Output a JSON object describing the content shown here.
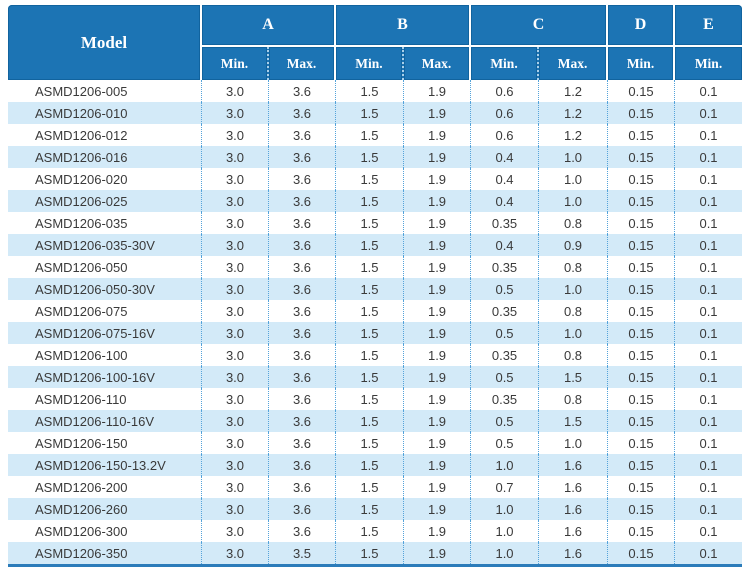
{
  "table": {
    "header": {
      "model_label": "Model",
      "groups": [
        {
          "label": "A",
          "subs": [
            "Min.",
            "Max."
          ]
        },
        {
          "label": "B",
          "subs": [
            "Min.",
            "Max."
          ]
        },
        {
          "label": "C",
          "subs": [
            "Min.",
            "Max."
          ]
        },
        {
          "label": "D",
          "subs": [
            "Min."
          ]
        },
        {
          "label": "E",
          "subs": [
            "Min."
          ]
        }
      ]
    },
    "rows": [
      {
        "model": "ASMD1206-005",
        "values": [
          "3.0",
          "3.6",
          "1.5",
          "1.9",
          "0.6",
          "1.2",
          "0.15",
          "0.1"
        ]
      },
      {
        "model": "ASMD1206-010",
        "values": [
          "3.0",
          "3.6",
          "1.5",
          "1.9",
          "0.6",
          "1.2",
          "0.15",
          "0.1"
        ]
      },
      {
        "model": "ASMD1206-012",
        "values": [
          "3.0",
          "3.6",
          "1.5",
          "1.9",
          "0.6",
          "1.2",
          "0.15",
          "0.1"
        ]
      },
      {
        "model": "ASMD1206-016",
        "values": [
          "3.0",
          "3.6",
          "1.5",
          "1.9",
          "0.4",
          "1.0",
          "0.15",
          "0.1"
        ]
      },
      {
        "model": "ASMD1206-020",
        "values": [
          "3.0",
          "3.6",
          "1.5",
          "1.9",
          "0.4",
          "1.0",
          "0.15",
          "0.1"
        ]
      },
      {
        "model": "ASMD1206-025",
        "values": [
          "3.0",
          "3.6",
          "1.5",
          "1.9",
          "0.4",
          "1.0",
          "0.15",
          "0.1"
        ]
      },
      {
        "model": "ASMD1206-035",
        "values": [
          "3.0",
          "3.6",
          "1.5",
          "1.9",
          "0.35",
          "0.8",
          "0.15",
          "0.1"
        ]
      },
      {
        "model": "ASMD1206-035-30V",
        "values": [
          "3.0",
          "3.6",
          "1.5",
          "1.9",
          "0.4",
          "0.9",
          "0.15",
          "0.1"
        ]
      },
      {
        "model": "ASMD1206-050",
        "values": [
          "3.0",
          "3.6",
          "1.5",
          "1.9",
          "0.35",
          "0.8",
          "0.15",
          "0.1"
        ]
      },
      {
        "model": "ASMD1206-050-30V",
        "values": [
          "3.0",
          "3.6",
          "1.5",
          "1.9",
          "0.5",
          "1.0",
          "0.15",
          "0.1"
        ]
      },
      {
        "model": "ASMD1206-075",
        "values": [
          "3.0",
          "3.6",
          "1.5",
          "1.9",
          "0.35",
          "0.8",
          "0.15",
          "0.1"
        ]
      },
      {
        "model": "ASMD1206-075-16V",
        "values": [
          "3.0",
          "3.6",
          "1.5",
          "1.9",
          "0.5",
          "1.0",
          "0.15",
          "0.1"
        ]
      },
      {
        "model": "ASMD1206-100",
        "values": [
          "3.0",
          "3.6",
          "1.5",
          "1.9",
          "0.35",
          "0.8",
          "0.15",
          "0.1"
        ]
      },
      {
        "model": "ASMD1206-100-16V",
        "values": [
          "3.0",
          "3.6",
          "1.5",
          "1.9",
          "0.5",
          "1.5",
          "0.15",
          "0.1"
        ]
      },
      {
        "model": "ASMD1206-110",
        "values": [
          "3.0",
          "3.6",
          "1.5",
          "1.9",
          "0.35",
          "0.8",
          "0.15",
          "0.1"
        ]
      },
      {
        "model": "ASMD1206-110-16V",
        "values": [
          "3.0",
          "3.6",
          "1.5",
          "1.9",
          "0.5",
          "1.5",
          "0.15",
          "0.1"
        ]
      },
      {
        "model": "ASMD1206-150",
        "values": [
          "3.0",
          "3.6",
          "1.5",
          "1.9",
          "0.5",
          "1.0",
          "0.15",
          "0.1"
        ]
      },
      {
        "model": "ASMD1206-150-13.2V",
        "values": [
          "3.0",
          "3.6",
          "1.5",
          "1.9",
          "1.0",
          "1.6",
          "0.15",
          "0.1"
        ]
      },
      {
        "model": "ASMD1206-200",
        "values": [
          "3.0",
          "3.6",
          "1.5",
          "1.9",
          "0.7",
          "1.6",
          "0.15",
          "0.1"
        ]
      },
      {
        "model": "ASMD1206-260",
        "values": [
          "3.0",
          "3.6",
          "1.5",
          "1.9",
          "1.0",
          "1.6",
          "0.15",
          "0.1"
        ]
      },
      {
        "model": "ASMD1206-300",
        "values": [
          "3.0",
          "3.6",
          "1.5",
          "1.9",
          "1.0",
          "1.6",
          "0.15",
          "0.1"
        ]
      },
      {
        "model": "ASMD1206-350",
        "values": [
          "3.0",
          "3.5",
          "1.5",
          "1.9",
          "1.0",
          "1.6",
          "0.15",
          "0.1"
        ]
      }
    ]
  },
  "colors": {
    "header_bg": "#1c74b4",
    "header_text": "#ffffff",
    "stripe_bg": "#d3eaf8",
    "row_bg": "#ffffff",
    "dotted_divider": "#54a3da",
    "bottom_border": "#2c7cba",
    "body_text": "#3a3a3a"
  }
}
